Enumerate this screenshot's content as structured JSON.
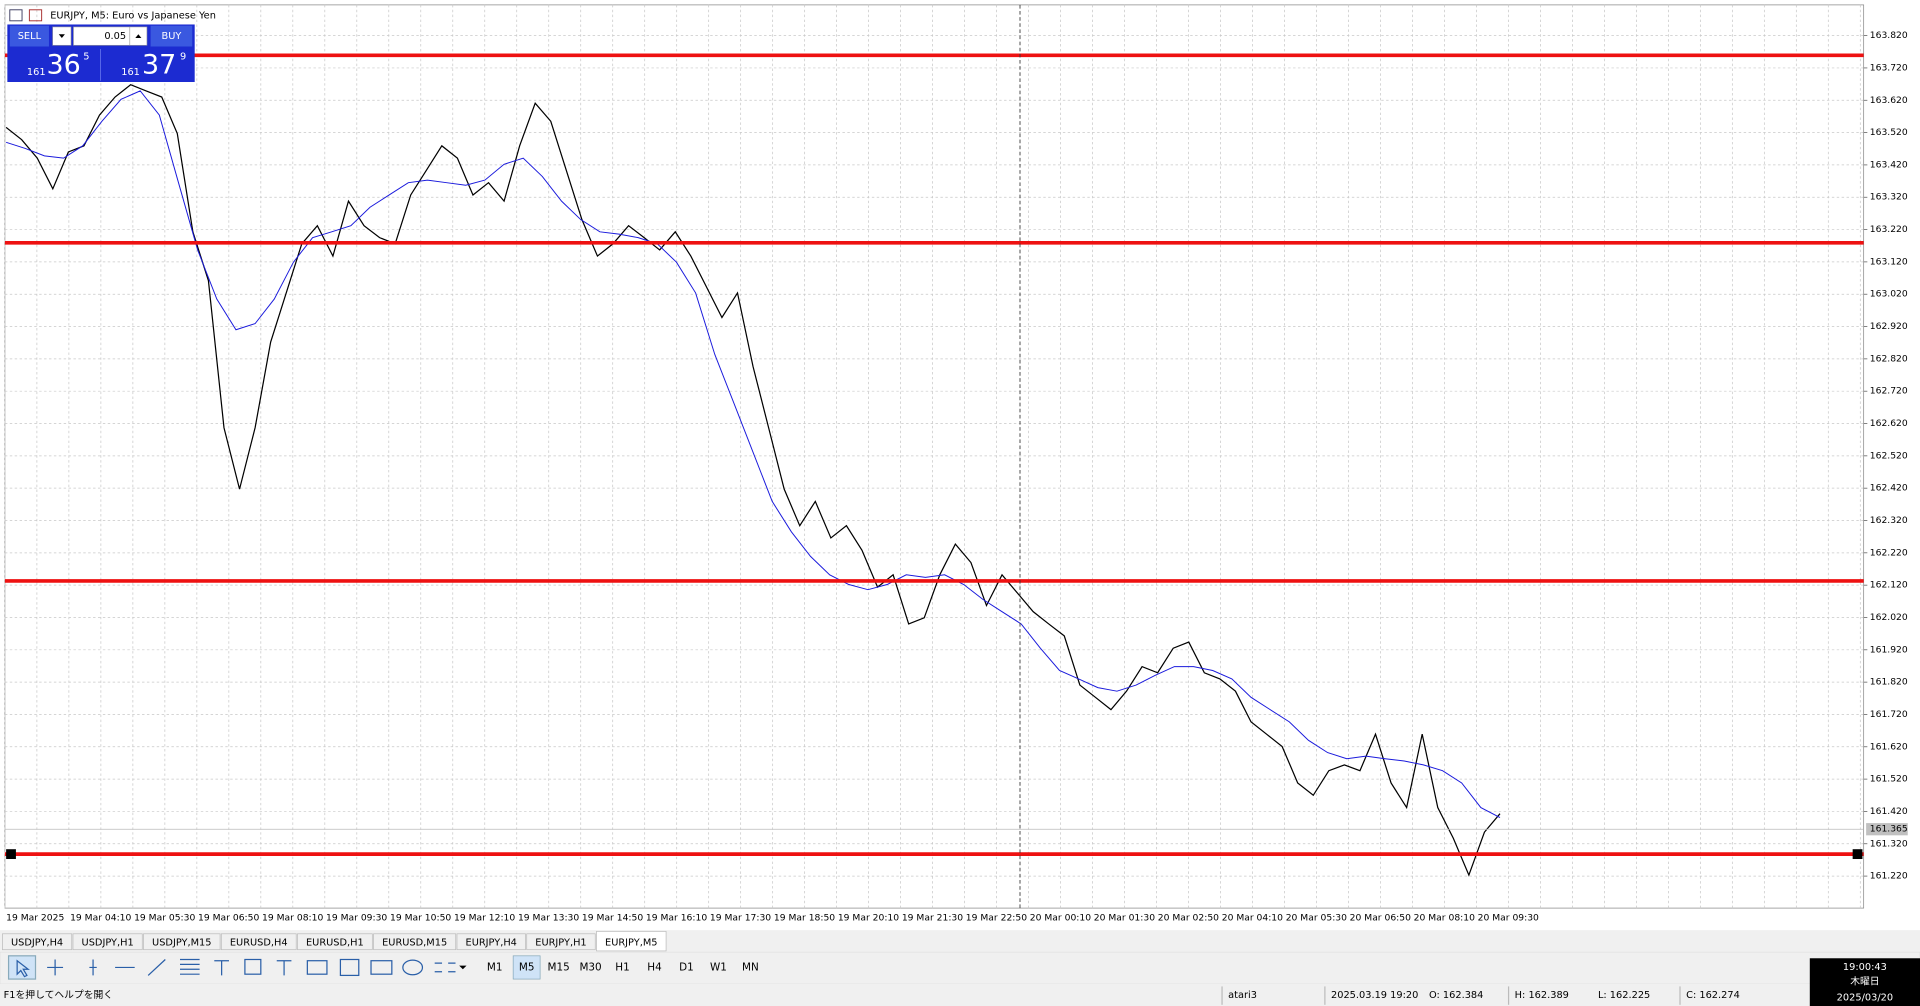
{
  "window": {
    "title": "EURJPY, M5:  Euro vs Japanese Yen"
  },
  "trade_panel": {
    "sell": "SELL",
    "lot": "0.05",
    "buy": "BUY",
    "bid": {
      "prefix": "161",
      "big": "36",
      "sup": "5"
    },
    "ask": {
      "prefix": "161",
      "big": "37",
      "sup": "9"
    }
  },
  "chart_data": {
    "type": "line",
    "ylim": [
      161.121,
      163.915
    ],
    "yticks": [
      {
        "value": 163.82,
        "label": "163.820"
      },
      {
        "value": 163.72,
        "label": "163.720"
      },
      {
        "value": 163.62,
        "label": "163.620"
      },
      {
        "value": 163.52,
        "label": "163.520"
      },
      {
        "value": 163.42,
        "label": "163.420"
      },
      {
        "value": 163.32,
        "label": "163.320"
      },
      {
        "value": 163.22,
        "label": "163.220"
      },
      {
        "value": 163.12,
        "label": "163.120"
      },
      {
        "value": 163.02,
        "label": "163.020"
      },
      {
        "value": 162.92,
        "label": "162.920"
      },
      {
        "value": 162.82,
        "label": "162.820"
      },
      {
        "value": 162.72,
        "label": "162.720"
      },
      {
        "value": 162.62,
        "label": "162.620"
      },
      {
        "value": 162.52,
        "label": "162.520"
      },
      {
        "value": 162.42,
        "label": "162.420"
      },
      {
        "value": 162.32,
        "label": "162.320"
      },
      {
        "value": 162.22,
        "label": "162.220"
      },
      {
        "value": 162.12,
        "label": "162.120"
      },
      {
        "value": 162.02,
        "label": "162.020"
      },
      {
        "value": 161.92,
        "label": "161.920"
      },
      {
        "value": 161.82,
        "label": "161.820"
      },
      {
        "value": 161.72,
        "label": "161.720"
      },
      {
        "value": 161.62,
        "label": "161.620"
      },
      {
        "value": 161.52,
        "label": "161.520"
      },
      {
        "value": 161.42,
        "label": "161.420"
      },
      {
        "value": 161.32,
        "label": "161.320"
      },
      {
        "value": 161.22,
        "label": "161.220"
      }
    ],
    "x_labels": [
      "19 Mar 2025",
      "19 Mar 04:10",
      "19 Mar 05:30",
      "19 Mar 06:50",
      "19 Mar 08:10",
      "19 Mar 09:30",
      "19 Mar 10:50",
      "19 Mar 12:10",
      "19 Mar 13:30",
      "19 Mar 14:50",
      "19 Mar 16:10",
      "19 Mar 17:30",
      "19 Mar 18:50",
      "19 Mar 20:10",
      "19 Mar 21:30",
      "19 Mar 22:50",
      "20 Mar 00:10",
      "20 Mar 01:30",
      "20 Mar 02:50",
      "20 Mar 04:10",
      "20 Mar 05:30",
      "20 Mar 06:50",
      "20 Mar 08:10",
      "20 Mar 09:30"
    ],
    "grid": true,
    "series": [
      {
        "color": "#000000",
        "values": [
          163.536,
          163.498,
          163.441,
          163.346,
          163.46,
          163.479,
          163.574,
          163.63,
          163.668,
          163.649,
          163.63,
          163.517,
          163.213,
          163.062,
          162.607,
          162.417,
          162.607,
          162.872,
          163.024,
          163.176,
          163.232,
          163.138,
          163.308,
          163.232,
          163.195,
          163.176,
          163.327,
          163.403,
          163.479,
          163.441,
          163.327,
          163.365,
          163.308,
          163.479,
          163.611,
          163.555,
          163.403,
          163.251,
          163.138,
          163.176,
          163.232,
          163.195,
          163.157,
          163.213,
          163.138,
          163.043,
          162.948,
          163.024,
          162.796,
          162.607,
          162.417,
          162.304,
          162.379,
          162.266,
          162.304,
          162.228,
          162.114,
          162.152,
          162.0,
          162.019,
          162.152,
          162.247,
          162.19,
          162.057,
          162.152,
          162.095,
          162.038,
          162.0,
          161.963,
          161.811,
          161.773,
          161.735,
          161.792,
          161.868,
          161.849,
          161.925,
          161.944,
          161.849,
          161.83,
          161.792,
          161.697,
          161.659,
          161.621,
          161.508,
          161.47,
          161.546,
          161.564,
          161.546,
          161.659,
          161.508,
          161.432,
          161.659,
          161.432,
          161.337,
          161.223,
          161.356,
          161.413
        ]
      },
      {
        "color": "#1a1adc",
        "values": [
          163.49,
          163.471,
          163.448,
          163.441,
          163.479,
          163.555,
          163.623,
          163.649,
          163.574,
          163.365,
          163.157,
          163.005,
          162.91,
          162.929,
          163.005,
          163.119,
          163.195,
          163.213,
          163.232,
          163.289,
          163.327,
          163.365,
          163.373,
          163.365,
          163.357,
          163.373,
          163.422,
          163.441,
          163.384,
          163.308,
          163.251,
          163.213,
          163.206,
          163.195,
          163.176,
          163.119,
          163.024,
          162.834,
          162.683,
          162.531,
          162.379,
          162.285,
          162.209,
          162.152,
          162.122,
          162.106,
          162.122,
          162.152,
          162.144,
          162.152,
          162.122,
          162.076,
          162.038,
          162.0,
          161.925,
          161.856,
          161.83,
          161.803,
          161.792,
          161.811,
          161.841,
          161.868,
          161.868,
          161.856,
          161.83,
          161.773,
          161.735,
          161.697,
          161.64,
          161.602,
          161.583,
          161.591,
          161.583,
          161.576,
          161.564,
          161.546,
          161.508,
          161.432,
          161.401
        ]
      }
    ],
    "levels": [
      163.759,
      163.179,
      162.133,
      161.288
    ],
    "level_color": "#ee1111",
    "current_price": {
      "value": 161.365,
      "label": "161.365"
    }
  },
  "tabs": [
    "USDJPY,H4",
    "USDJPY,H1",
    "USDJPY,M15",
    "EURUSD,H4",
    "EURUSD,H1",
    "EURUSD,M15",
    "EURJPY,H4",
    "EURJPY,H1",
    "EURJPY,M5"
  ],
  "active_tab": 8,
  "timeframes": [
    "M1",
    "M5",
    "M15",
    "M30",
    "H1",
    "H4",
    "D1",
    "W1",
    "MN"
  ],
  "active_timeframe": 1,
  "status": {
    "help": "F1を押してヘルプを開く",
    "profile": "atari3",
    "datetime": "2025.03.19 19:20",
    "open": "O: 162.384",
    "high": "H: 162.389",
    "low": "L: 162.225",
    "close": "C: 162.274"
  },
  "clock": {
    "time": "19:00:43",
    "day": "木曜日",
    "date": "2025/03/20"
  }
}
